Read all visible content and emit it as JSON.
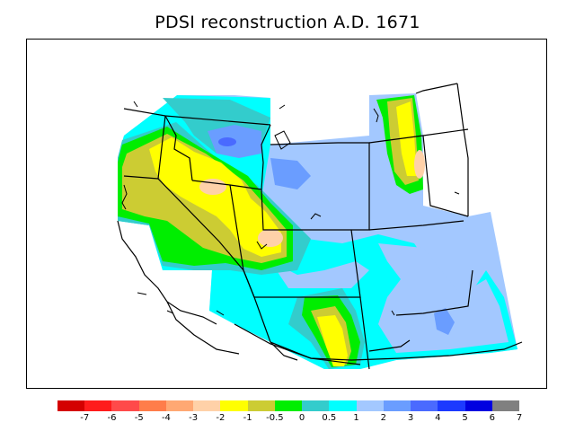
{
  "title": "PDSI reconstruction A.D. 1671",
  "legend": {
    "colors": [
      "#d40000",
      "#ff1c1c",
      "#ff4a4a",
      "#ff7d4a",
      "#ffa873",
      "#ffd1a8",
      "#ffff00",
      "#cccc33",
      "#00ee00",
      "#33cccc",
      "#00ffff",
      "#a3c8ff",
      "#6a9dff",
      "#4a6aff",
      "#1c3aff",
      "#0000e0",
      "#808080"
    ],
    "labels": [
      "-7",
      "-6",
      "-5",
      "-4",
      "-3",
      "-2",
      "-1",
      "-0.5",
      "0",
      "0.5",
      "1",
      "2",
      "3",
      "4",
      "5",
      "6",
      "7"
    ]
  },
  "map": {
    "region": "western United States",
    "colors": {
      "dry_mild": "#ffff00",
      "dry_moderate": "#ffd1a8",
      "near_normal_dry": "#cccc33",
      "near_normal": "#00ee00",
      "wet_slight": "#33cccc",
      "wet_mild": "#00ffff",
      "wet_moderate": "#a3c8ff",
      "wet_strong": "#6a9dff"
    }
  }
}
